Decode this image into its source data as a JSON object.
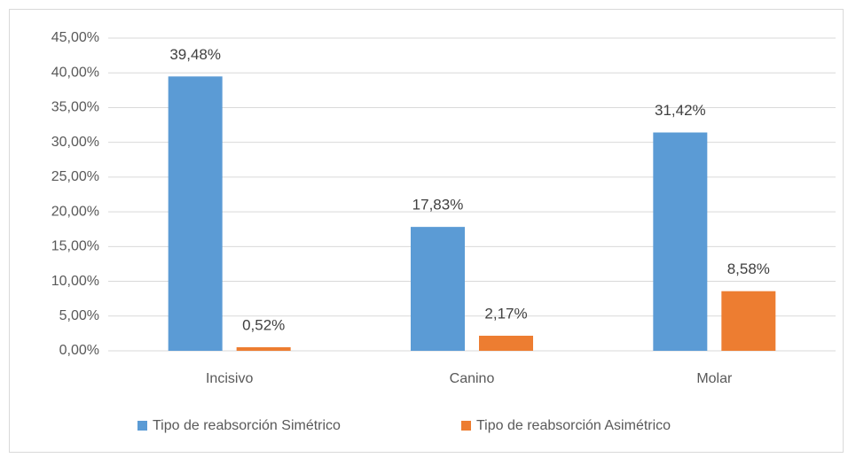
{
  "chart_data": {
    "type": "bar",
    "categories": [
      "Incisivo",
      "Canino",
      "Molar"
    ],
    "series": [
      {
        "name": "Tipo de reabsorción Simétrico",
        "color": "#5b9bd5",
        "values": [
          39.48,
          17.83,
          31.42
        ],
        "value_labels": [
          "39,48%",
          "17,83%",
          "31,42%"
        ]
      },
      {
        "name": "Tipo de reabsorción Asimétrico",
        "color": "#ed7d31",
        "values": [
          0.52,
          2.17,
          8.58
        ],
        "value_labels": [
          "0,52%",
          "2,17%",
          "8,58%"
        ]
      }
    ],
    "ylim": [
      0,
      45
    ],
    "yticks": [
      {
        "value": 0,
        "label": "0,00%"
      },
      {
        "value": 5,
        "label": "5,00%"
      },
      {
        "value": 10,
        "label": "10,00%"
      },
      {
        "value": 15,
        "label": "15,00%"
      },
      {
        "value": 20,
        "label": "20,00%"
      },
      {
        "value": 25,
        "label": "25,00%"
      },
      {
        "value": 30,
        "label": "30,00%"
      },
      {
        "value": 35,
        "label": "35,00%"
      },
      {
        "value": 40,
        "label": "40,00%"
      },
      {
        "value": 45,
        "label": "45,00%"
      }
    ],
    "grid": true,
    "legend": "bottom"
  }
}
